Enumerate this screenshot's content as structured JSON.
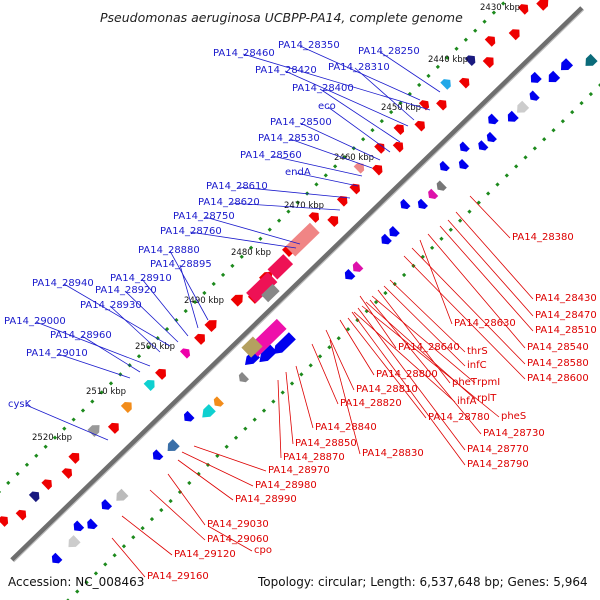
{
  "title": "Pseudomonas aeruginosa UCBPP-PA14, complete genome",
  "footer": {
    "accession": "Accession: NC_008463",
    "summary": "Topology: circular; Length: 6,537,648 bp; Genes: 5,964"
  },
  "colors": {
    "backbone": "#6e6e6e",
    "forward_label": "#1a1acc",
    "reverse_label": "#dd0000",
    "forward_gene": "#0000ee",
    "reverse_gene": "#ee0000",
    "tick_green": "#1d8a1d"
  },
  "kbp_ticks": [
    {
      "label": "2430 kbp"
    },
    {
      "label": "2440 kbp"
    },
    {
      "label": "2450 kbp"
    },
    {
      "label": "2460 kbp"
    },
    {
      "label": "2470 kbp"
    },
    {
      "label": "2480 kbp"
    },
    {
      "label": "2490 kbp"
    },
    {
      "label": "2500 kbp"
    },
    {
      "label": "2510 kbp"
    },
    {
      "label": "2520 kbp"
    }
  ],
  "forward_labels": [
    {
      "label": "PA14_28350"
    },
    {
      "label": "PA14_28460"
    },
    {
      "label": "PA14_28250"
    },
    {
      "label": "PA14_28420"
    },
    {
      "label": "PA14_28310"
    },
    {
      "label": "PA14_28400"
    },
    {
      "label": "eco"
    },
    {
      "label": "PA14_28500"
    },
    {
      "label": "PA14_28530"
    },
    {
      "label": "PA14_28560"
    },
    {
      "label": "endA"
    },
    {
      "label": "PA14_28610"
    },
    {
      "label": "PA14_28620"
    },
    {
      "label": "PA14_28750"
    },
    {
      "label": "PA14_28760"
    },
    {
      "label": "PA14_28880"
    },
    {
      "label": "PA14_28895"
    },
    {
      "label": "PA14_28910"
    },
    {
      "label": "PA14_28940"
    },
    {
      "label": "PA14_28920"
    },
    {
      "label": "PA14_28930"
    },
    {
      "label": "PA14_29000"
    },
    {
      "label": "PA14_28960"
    },
    {
      "label": "PA14_29010"
    },
    {
      "label": "cysK"
    }
  ],
  "reverse_labels": [
    {
      "label": "PA14_28380"
    },
    {
      "label": "PA14_28430"
    },
    {
      "label": "PA14_28470"
    },
    {
      "label": "PA14_28510"
    },
    {
      "label": "PA14_28630"
    },
    {
      "label": "PA14_28540"
    },
    {
      "label": "PA14_28640"
    },
    {
      "label": "thrS"
    },
    {
      "label": "PA14_28580"
    },
    {
      "label": "infC"
    },
    {
      "label": "PA14_28600"
    },
    {
      "label": "PA14_28800"
    },
    {
      "label": "pheT"
    },
    {
      "label": "rpmI"
    },
    {
      "label": "PA14_28810"
    },
    {
      "label": "rplT"
    },
    {
      "label": "PA14_28820"
    },
    {
      "label": "ihfA"
    },
    {
      "label": "pheS"
    },
    {
      "label": "PA14_28780"
    },
    {
      "label": "PA14_28730"
    },
    {
      "label": "PA14_28840"
    },
    {
      "label": "PA14_28770"
    },
    {
      "label": "PA14_28850"
    },
    {
      "label": "PA14_28790"
    },
    {
      "label": "PA14_28870"
    },
    {
      "label": "PA14_28830"
    },
    {
      "label": "PA14_28970"
    },
    {
      "label": "PA14_28980"
    },
    {
      "label": "PA14_28990"
    },
    {
      "label": "PA14_29030"
    },
    {
      "label": "PA14_29060"
    },
    {
      "label": "cpo"
    },
    {
      "label": "PA14_29120"
    },
    {
      "label": "PA14_29160"
    }
  ]
}
